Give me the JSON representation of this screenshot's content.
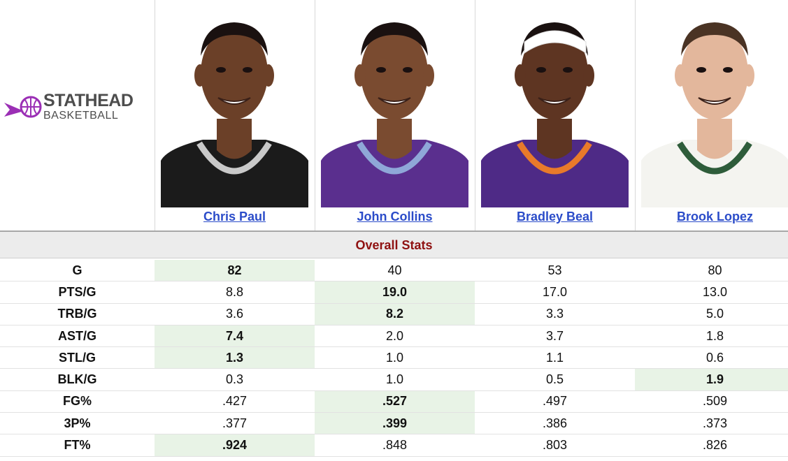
{
  "logo": {
    "line1": "STATHEAD",
    "line2": "BASKETBALL",
    "accent_color": "#9b2fb5"
  },
  "players": [
    {
      "name": "Chris Paul",
      "photo": "chris-paul-portrait",
      "jersey_color": "#1b1b1b",
      "trim_color": "#c9c9c9",
      "skin": "#6b4028",
      "hair": "#1a1110"
    },
    {
      "name": "John Collins",
      "photo": "john-collins-portrait",
      "jersey_color": "#5a2f8e",
      "trim_color": "#8fa7d8",
      "skin": "#7a4b30",
      "hair": "#1a1110"
    },
    {
      "name": "Bradley Beal",
      "photo": "bradley-beal-portrait",
      "jersey_color": "#4e2a86",
      "trim_color": "#e87a2a",
      "skin": "#5e3522",
      "hair": "#ffffff"
    },
    {
      "name": "Brook Lopez",
      "photo": "brook-lopez-portrait",
      "jersey_color": "#f4f4f0",
      "trim_color": "#2e5c3a",
      "skin": "#e3b79c",
      "hair": "#4a3324"
    }
  ],
  "section_title": "Overall Stats",
  "colors": {
    "link": "#2b4cc9",
    "section_title": "#8f1111",
    "highlight": "#e8f3e6"
  },
  "rows": [
    {
      "label": "G",
      "values": [
        "82",
        "40",
        "53",
        "80"
      ],
      "best": 0
    },
    {
      "label": "PTS/G",
      "values": [
        "8.8",
        "19.0",
        "17.0",
        "13.0"
      ],
      "best": 1
    },
    {
      "label": "TRB/G",
      "values": [
        "3.6",
        "8.2",
        "3.3",
        "5.0"
      ],
      "best": 1
    },
    {
      "label": "AST/G",
      "values": [
        "7.4",
        "2.0",
        "3.7",
        "1.8"
      ],
      "best": 0
    },
    {
      "label": "STL/G",
      "values": [
        "1.3",
        "1.0",
        "1.1",
        "0.6"
      ],
      "best": 0
    },
    {
      "label": "BLK/G",
      "values": [
        "0.3",
        "1.0",
        "0.5",
        "1.9"
      ],
      "best": 3
    },
    {
      "label": "FG%",
      "values": [
        ".427",
        ".527",
        ".497",
        ".509"
      ],
      "best": 1
    },
    {
      "label": "3P%",
      "values": [
        ".377",
        ".399",
        ".386",
        ".373"
      ],
      "best": 1
    },
    {
      "label": "FT%",
      "values": [
        ".924",
        ".848",
        ".803",
        ".826"
      ],
      "best": 0
    }
  ]
}
